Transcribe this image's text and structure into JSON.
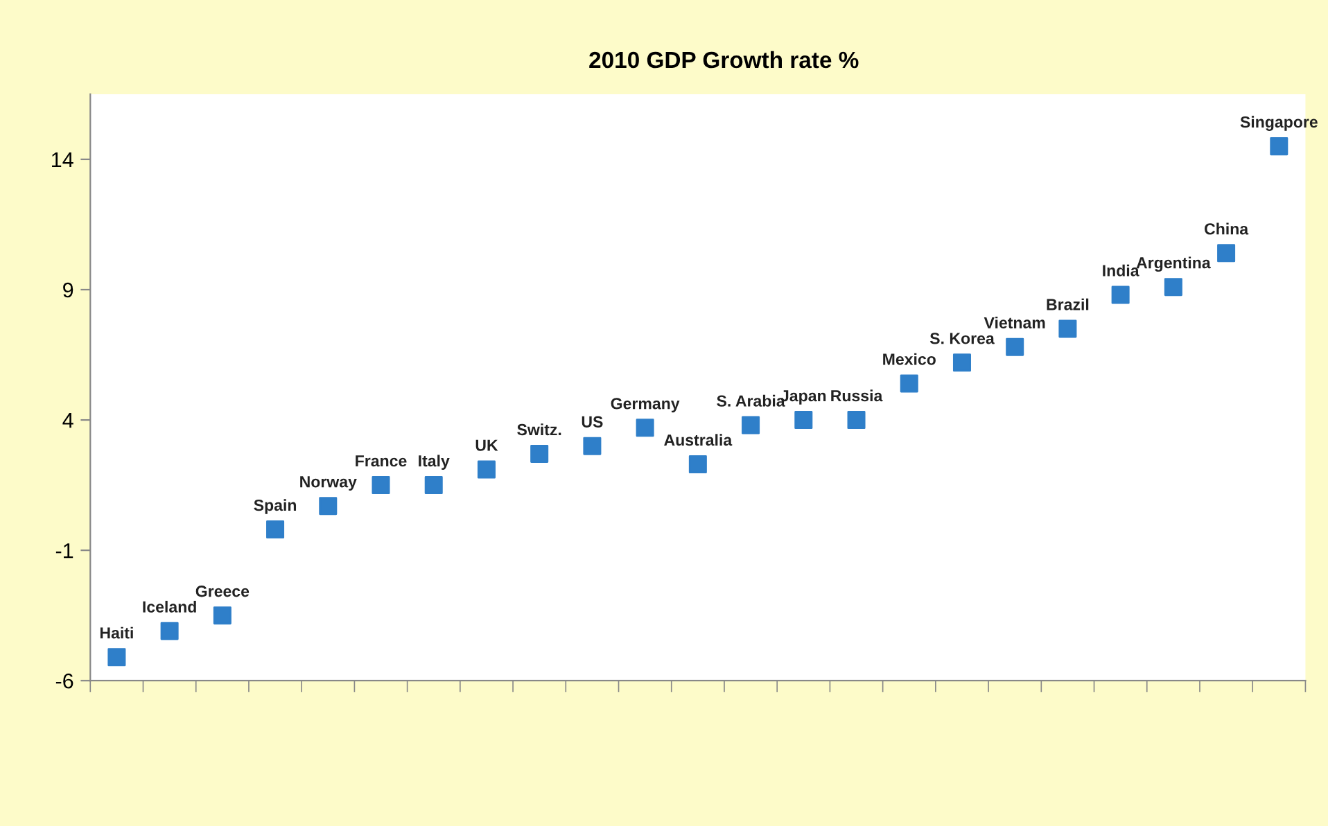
{
  "chart_data": {
    "type": "scatter",
    "title": "2010 GDP Growth rate %",
    "categories": [
      "Haiti",
      "Iceland",
      "Greece",
      "Spain",
      "Norway",
      "France",
      "Italy",
      "UK",
      "Switz.",
      "US",
      "Germany",
      "Australia",
      "S. Arabia",
      "Japan",
      "Russia",
      "Mexico",
      "S. Korea",
      "Vietnam",
      "Brazil",
      "India",
      "Argentina",
      "China",
      "Singapore"
    ],
    "series": [
      {
        "color": "#2f7fc9",
        "values": [
          -5.1,
          -4.1,
          -3.5,
          -0.2,
          0.7,
          1.5,
          1.5,
          2.1,
          2.7,
          3.0,
          3.7,
          2.3,
          3.8,
          4.0,
          4.0,
          5.4,
          6.2,
          6.8,
          7.5,
          8.8,
          9.1,
          10.4,
          14.5
        ]
      }
    ],
    "ylim": [
      -6,
      16.5
    ],
    "yticks": [
      -6,
      -1,
      4,
      9,
      14
    ],
    "marker": "square",
    "grid": false,
    "legend": false
  }
}
